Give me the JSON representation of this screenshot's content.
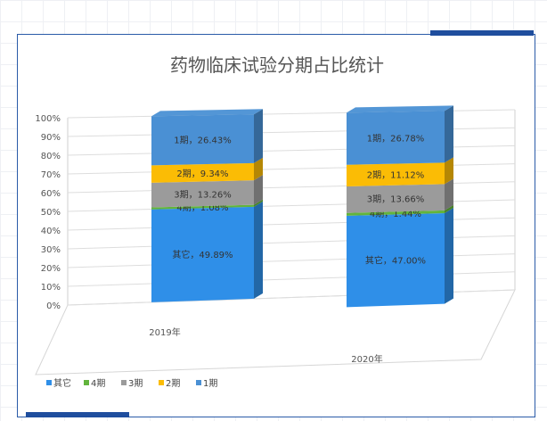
{
  "chart_data": {
    "type": "bar",
    "title": "药物临床试验分期占比统计",
    "categories": [
      "2019年",
      "2020年"
    ],
    "ylim": [
      0,
      100
    ],
    "yticks": [
      "0%",
      "10%",
      "20%",
      "30%",
      "40%",
      "50%",
      "60%",
      "70%",
      "80%",
      "90%",
      "100%"
    ],
    "series": [
      {
        "name": "其它",
        "color": "#2f8fe8",
        "values": [
          49.89,
          47.0
        ],
        "labels": [
          "其它，49.89%",
          "其它，47.00%"
        ]
      },
      {
        "name": "4期",
        "color": "#62b43c",
        "values": [
          1.08,
          1.44
        ],
        "labels": [
          "4期，1.08%",
          "4期，1.44%"
        ]
      },
      {
        "name": "3期",
        "color": "#9b9b9b",
        "values": [
          13.26,
          13.66
        ],
        "labels": [
          "3期，13.26%",
          "3期，13.66%"
        ]
      },
      {
        "name": "2期",
        "color": "#fbbc05",
        "values": [
          9.34,
          11.12
        ],
        "labels": [
          "2期，9.34%",
          "2期，11.12%"
        ]
      },
      {
        "name": "1期",
        "color": "#4a90d4",
        "values": [
          26.43,
          26.78
        ],
        "labels": [
          "1期，26.43%",
          "1期，26.78%"
        ]
      }
    ],
    "legend_position": "bottom-left"
  }
}
